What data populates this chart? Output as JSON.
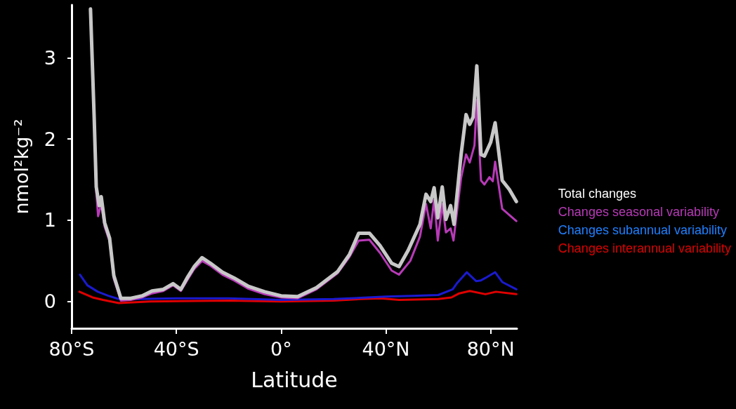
{
  "chart_data": {
    "type": "line",
    "xlabel": "Latitude",
    "ylabel": "nmol²kg⁻²",
    "xlim": [
      -80,
      90
    ],
    "ylim": [
      -0.33,
      3.65
    ],
    "xticks": [
      {
        "value": -80,
        "label": "80°S"
      },
      {
        "value": -40,
        "label": "40°S"
      },
      {
        "value": 0,
        "label": "0°"
      },
      {
        "value": 40,
        "label": "40°N"
      },
      {
        "value": 80,
        "label": "80°N"
      }
    ],
    "yticks": [
      0,
      1,
      2,
      3
    ],
    "grid": false,
    "legend": "right",
    "marker": "none",
    "line_style": "solid",
    "series": [
      {
        "name": "Total changes",
        "color": "#c8c8c8",
        "x": [
          -72.8,
          -71.4,
          -70.6,
          -69.5,
          -68.7,
          -67.4,
          -65.5,
          -63.9,
          -61.2,
          -57.4,
          -53.1,
          -49.3,
          -45,
          -41.3,
          -38.3,
          -35.9,
          -33.2,
          -30.2,
          -27,
          -22.4,
          -18,
          -12.7,
          -6.3,
          0,
          6.3,
          13.5,
          21.6,
          26.1,
          29.6,
          33.7,
          37.7,
          42.2,
          45,
          48.5,
          53,
          55.3,
          57.1,
          58.4,
          59.8,
          61.5,
          62.9,
          64.7,
          66,
          68.7,
          70.6,
          72,
          73.3,
          74.7,
          76.3,
          77.6,
          80,
          81.7,
          84.4,
          87.1,
          89.8
        ],
        "values": [
          3.6,
          2.27,
          1.41,
          1.18,
          1.29,
          0.97,
          0.78,
          0.32,
          0.04,
          0.04,
          0.07,
          0.13,
          0.15,
          0.22,
          0.15,
          0.29,
          0.43,
          0.54,
          0.47,
          0.36,
          0.29,
          0.19,
          0.12,
          0.07,
          0.06,
          0.17,
          0.37,
          0.58,
          0.84,
          0.84,
          0.69,
          0.47,
          0.43,
          0.63,
          0.95,
          1.32,
          1.23,
          1.4,
          1.03,
          1.41,
          1.01,
          1.18,
          0.95,
          1.81,
          2.3,
          2.18,
          2.27,
          2.9,
          1.81,
          1.79,
          1.96,
          2.2,
          1.49,
          1.38,
          1.23
        ]
      },
      {
        "name": "Changes seasonal variability",
        "color": "#b83ab8",
        "x": [
          -72.8,
          -71.4,
          -70.6,
          -69.9,
          -68.7,
          -67.4,
          -65.5,
          -63.9,
          -61.2,
          -57.4,
          -53.1,
          -49.3,
          -45,
          -41.3,
          -38.3,
          -35.9,
          -33.2,
          -30.2,
          -27,
          -22.4,
          -18,
          -12.7,
          -6.3,
          0,
          6.3,
          13.5,
          21.6,
          26.1,
          29.6,
          33.7,
          37.7,
          42.2,
          45,
          49.3,
          53,
          55.3,
          57.1,
          58.4,
          59.8,
          61.5,
          62.9,
          64.7,
          65.8,
          68.7,
          70.6,
          72,
          73.8,
          74.7,
          76.3,
          77.6,
          79.5,
          80.8,
          81.7,
          84.4,
          89.8
        ],
        "values": [
          3.6,
          2.25,
          1.35,
          1.05,
          1.2,
          0.92,
          0.74,
          0.28,
          0.01,
          0.02,
          0.05,
          0.1,
          0.13,
          0.2,
          0.13,
          0.26,
          0.4,
          0.5,
          0.44,
          0.33,
          0.26,
          0.16,
          0.09,
          0.05,
          0.04,
          0.15,
          0.35,
          0.55,
          0.75,
          0.76,
          0.6,
          0.38,
          0.33,
          0.5,
          0.8,
          1.2,
          0.9,
          1.25,
          0.75,
          1.2,
          0.85,
          0.9,
          0.75,
          1.52,
          1.81,
          1.71,
          1.92,
          2.48,
          1.49,
          1.44,
          1.53,
          1.48,
          1.72,
          1.14,
          0.99
        ]
      },
      {
        "name": "Changes subannual variability",
        "color": "#1a1ad0",
        "x": [
          -76.8,
          -74,
          -70,
          -66,
          -62,
          -55,
          -40,
          -20,
          0,
          20,
          40,
          50,
          60,
          65.5,
          67,
          70.9,
          72.5,
          74.5,
          76.3,
          78,
          81.7,
          84.4,
          89.8
        ],
        "values": [
          0.33,
          0.2,
          0.12,
          0.07,
          0.03,
          0.03,
          0.04,
          0.04,
          0.02,
          0.03,
          0.06,
          0.07,
          0.08,
          0.15,
          0.22,
          0.36,
          0.31,
          0.25,
          0.26,
          0.29,
          0.36,
          0.24,
          0.15
        ]
      },
      {
        "name": "Changes interannual variability",
        "color": "#e00000",
        "x": [
          -77,
          -72,
          -68,
          -62,
          -50,
          -20,
          0,
          20,
          30,
          38,
          45,
          60,
          65,
          68,
          72,
          78,
          82,
          89.8
        ],
        "values": [
          0.12,
          0.05,
          0.02,
          -0.02,
          0,
          0.01,
          0,
          0.01,
          0.03,
          0.04,
          0.02,
          0.03,
          0.05,
          0.1,
          0.13,
          0.09,
          0.12,
          0.09
        ]
      }
    ]
  }
}
